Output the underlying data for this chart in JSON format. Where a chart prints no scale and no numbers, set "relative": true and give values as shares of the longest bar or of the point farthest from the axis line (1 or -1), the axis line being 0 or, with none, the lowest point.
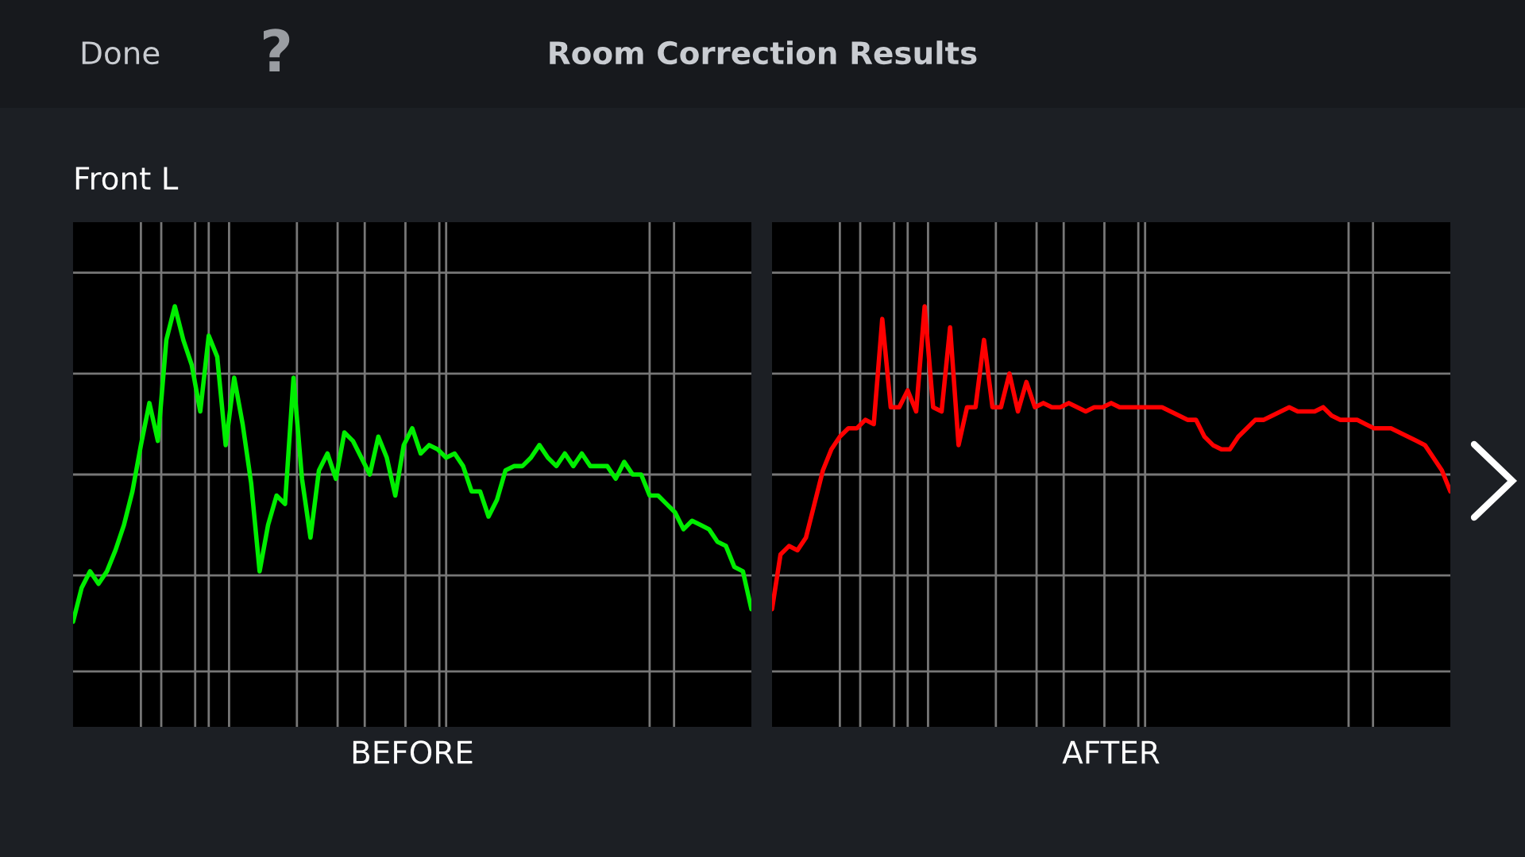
{
  "chart_data": [
    {
      "type": "line",
      "title": "Room Correction Results",
      "subtitle": "Front L",
      "annotations": [
        "Done",
        "?"
      ],
      "xlabel": "BEFORE",
      "relative": true,
      "grid": true,
      "categories": [
        null,
        null,
        null,
        null,
        null,
        null,
        null,
        null,
        null,
        null,
        null,
        null,
        null,
        null,
        null,
        null,
        null,
        null,
        null,
        null,
        null,
        null,
        null,
        null,
        null,
        null,
        null,
        null,
        null,
        null,
        null,
        null,
        null,
        null,
        null,
        null,
        null,
        null,
        null,
        null,
        null,
        null,
        null,
        null,
        null,
        null,
        null,
        null,
        null,
        null,
        null,
        null,
        null,
        null,
        null,
        null,
        null,
        null,
        null,
        null,
        null,
        null,
        null,
        null,
        null,
        null,
        null,
        null,
        null,
        null,
        null,
        null,
        null,
        null,
        null,
        null,
        null,
        null,
        null,
        null,
        null
      ],
      "series": [
        {
          "color": "#00ee00",
          "values": [
            0.25,
            0.33,
            0.37,
            0.34,
            0.37,
            0.42,
            0.48,
            0.56,
            0.67,
            0.77,
            0.68,
            0.92,
            1.0,
            0.92,
            0.86,
            0.75,
            0.93,
            0.88,
            0.67,
            0.83,
            0.72,
            0.58,
            0.37,
            0.48,
            0.55,
            0.53,
            0.83,
            0.59,
            0.45,
            0.61,
            0.65,
            0.59,
            0.7,
            0.68,
            0.64,
            0.6,
            0.69,
            0.64,
            0.55,
            0.67,
            0.71,
            0.65,
            0.67,
            0.66,
            0.64,
            0.65,
            0.62,
            0.56,
            0.56,
            0.5,
            0.54,
            0.61,
            0.62,
            0.62,
            0.64,
            0.67,
            0.64,
            0.62,
            0.65,
            0.62,
            0.65,
            0.62,
            0.62,
            0.62,
            0.59,
            0.63,
            0.6,
            0.6,
            0.55,
            0.55,
            0.53,
            0.51,
            0.47,
            0.49,
            0.48,
            0.47,
            0.44,
            0.43,
            0.38,
            0.37,
            0.28
          ]
        }
      ]
    },
    {
      "type": "line",
      "xlabel": "AFTER",
      "relative": true,
      "grid": true,
      "categories": [
        null,
        null,
        null,
        null,
        null,
        null,
        null,
        null,
        null,
        null,
        null,
        null,
        null,
        null,
        null,
        null,
        null,
        null,
        null,
        null,
        null,
        null,
        null,
        null,
        null,
        null,
        null,
        null,
        null,
        null,
        null,
        null,
        null,
        null,
        null,
        null,
        null,
        null,
        null,
        null,
        null,
        null,
        null,
        null,
        null,
        null,
        null,
        null,
        null,
        null,
        null,
        null,
        null,
        null,
        null,
        null,
        null,
        null,
        null,
        null,
        null,
        null,
        null,
        null,
        null,
        null,
        null,
        null,
        null,
        null,
        null,
        null,
        null,
        null,
        null,
        null,
        null,
        null,
        null,
        null,
        null
      ],
      "series": [
        {
          "color": "#ff0000",
          "values": [
            0.28,
            0.41,
            0.43,
            0.42,
            0.45,
            0.53,
            0.61,
            0.66,
            0.69,
            0.71,
            0.71,
            0.73,
            0.72,
            0.97,
            0.76,
            0.76,
            0.8,
            0.75,
            1.0,
            0.76,
            0.75,
            0.95,
            0.67,
            0.76,
            0.76,
            0.92,
            0.76,
            0.76,
            0.84,
            0.75,
            0.82,
            0.76,
            0.77,
            0.76,
            0.76,
            0.77,
            0.76,
            0.75,
            0.76,
            0.76,
            0.77,
            0.76,
            0.76,
            0.76,
            0.76,
            0.76,
            0.76,
            0.75,
            0.74,
            0.73,
            0.73,
            0.69,
            0.67,
            0.66,
            0.66,
            0.69,
            0.71,
            0.73,
            0.73,
            0.74,
            0.75,
            0.76,
            0.75,
            0.75,
            0.75,
            0.76,
            0.74,
            0.73,
            0.73,
            0.73,
            0.72,
            0.71,
            0.71,
            0.71,
            0.7,
            0.69,
            0.68,
            0.67,
            0.64,
            0.61,
            0.56
          ]
        }
      ]
    }
  ]
}
